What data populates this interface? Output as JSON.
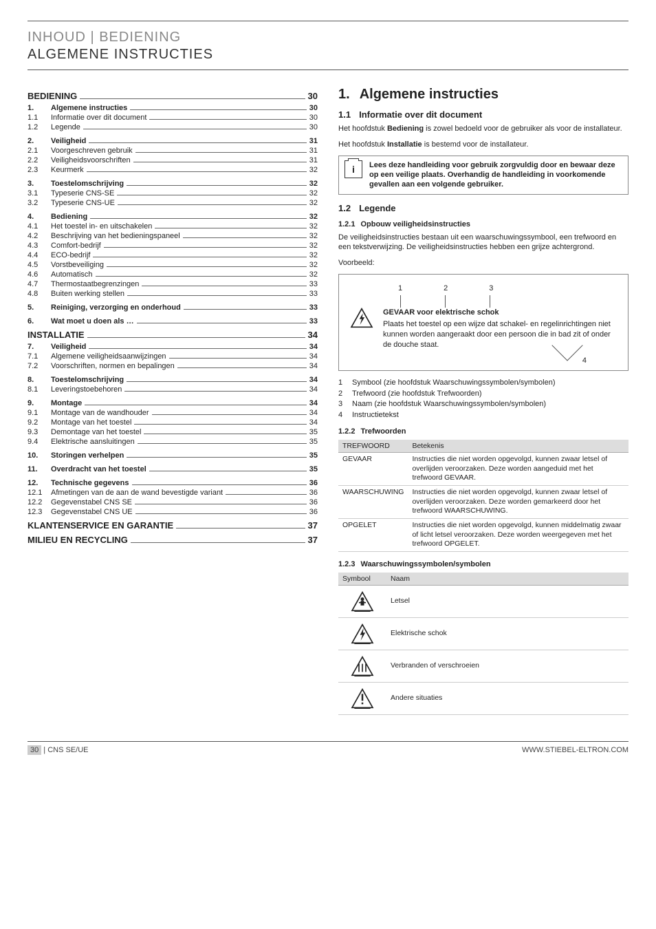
{
  "header": {
    "breadcrumb": "INHOUD | BEDIENING",
    "title": "ALGEMENE INSTRUCTIES"
  },
  "toc": {
    "sections": [
      {
        "type": "head",
        "num": "",
        "label": "BEDIENING",
        "page": "30"
      },
      {
        "type": "bold",
        "num": "1.",
        "label": "Algemene instructies",
        "page": "30"
      },
      {
        "num": "1.1",
        "label": "Informatie over dit document",
        "page": "30"
      },
      {
        "num": "1.2",
        "label": "Legende",
        "page": "30"
      },
      {
        "type": "bold",
        "num": "2.",
        "label": "Veiligheid",
        "page": "31",
        "gap": true
      },
      {
        "num": "2.1",
        "label": "Voorgeschreven gebruik",
        "page": "31"
      },
      {
        "num": "2.2",
        "label": "Veiligheidsvoorschriften",
        "page": "31"
      },
      {
        "num": "2.3",
        "label": "Keurmerk",
        "page": "32"
      },
      {
        "type": "bold",
        "num": "3.",
        "label": "Toestelomschrijving",
        "page": "32",
        "gap": true
      },
      {
        "num": "3.1",
        "label": "Typeserie CNS-SE",
        "page": "32"
      },
      {
        "num": "3.2",
        "label": "Typeserie CNS-UE",
        "page": "32"
      },
      {
        "type": "bold",
        "num": "4.",
        "label": "Bediening",
        "page": "32",
        "gap": true
      },
      {
        "num": "4.1",
        "label": "Het toestel in- en uitschakelen",
        "page": "32"
      },
      {
        "num": "4.2",
        "label": "Beschrijving van het bedieningspaneel",
        "page": "32"
      },
      {
        "num": "4.3",
        "label": "Comfort-bedrijf",
        "page": "32"
      },
      {
        "num": "4.4",
        "label": "ECO-bedrijf",
        "page": "32"
      },
      {
        "num": "4.5",
        "label": "Vorstbeveiliging",
        "page": "32"
      },
      {
        "num": "4.6",
        "label": "Automatisch",
        "page": "32"
      },
      {
        "num": "4.7",
        "label": "Thermostaatbegrenzingen",
        "page": "33"
      },
      {
        "num": "4.8",
        "label": "Buiten werking stellen",
        "page": "33"
      },
      {
        "type": "bold",
        "num": "5.",
        "label": "Reiniging, verzorging en onderhoud",
        "page": "33",
        "gap": true
      },
      {
        "type": "bold",
        "num": "6.",
        "label": "Wat moet u doen als …",
        "page": "33",
        "gap": true
      },
      {
        "type": "head",
        "num": "",
        "label": "INSTALLATIE",
        "page": "34"
      },
      {
        "type": "bold",
        "num": "7.",
        "label": "Veiligheid",
        "page": "34"
      },
      {
        "num": "7.1",
        "label": "Algemene veiligheidsaanwijzingen",
        "page": "34"
      },
      {
        "num": "7.2",
        "label": "Voorschriften, normen en bepalingen",
        "page": "34"
      },
      {
        "type": "bold",
        "num": "8.",
        "label": "Toestelomschrijving",
        "page": "34",
        "gap": true
      },
      {
        "num": "8.1",
        "label": "Leveringstoebehoren",
        "page": "34"
      },
      {
        "type": "bold",
        "num": "9.",
        "label": "Montage",
        "page": "34",
        "gap": true
      },
      {
        "num": "9.1",
        "label": "Montage van de wandhouder",
        "page": "34"
      },
      {
        "num": "9.2",
        "label": "Montage van het toestel",
        "page": "34"
      },
      {
        "num": "9.3",
        "label": "Demontage van het toestel",
        "page": "35"
      },
      {
        "num": "9.4",
        "label": "Elektrische aansluitingen",
        "page": "35"
      },
      {
        "type": "bold",
        "num": "10.",
        "label": "Storingen verhelpen",
        "page": "35",
        "gap": true
      },
      {
        "type": "bold",
        "num": "11.",
        "label": "Overdracht van het toestel",
        "page": "35",
        "gap": true
      },
      {
        "type": "bold",
        "num": "12.",
        "label": "Technische gegevens",
        "page": "36",
        "gap": true
      },
      {
        "num": "12.1",
        "label": "Afmetingen van de aan de wand bevestigde variant",
        "page": "36"
      },
      {
        "num": "12.2",
        "label": "Gegevenstabel CNS SE",
        "page": "36"
      },
      {
        "num": "12.3",
        "label": "Gegevenstabel CNS UE",
        "page": "36"
      },
      {
        "type": "head",
        "num": "",
        "label": "KLANTENSERVICE EN GARANTIE",
        "page": "37"
      },
      {
        "type": "head",
        "num": "",
        "label": "MILIEU EN RECYCLING",
        "page": "37"
      }
    ]
  },
  "right": {
    "h1_num": "1.",
    "h1": "Algemene instructies",
    "h11_num": "1.1",
    "h11": "Informatie over dit document",
    "p1a": "Het hoofdstuk ",
    "p1b": "Bediening",
    "p1c": " is zowel bedoeld voor de gebruiker als voor de installateur.",
    "p2a": "Het hoofdstuk ",
    "p2b": "Installatie",
    "p2c": " is bestemd voor de installateur.",
    "info": "Lees deze handleiding voor gebruik zorgvuldig door en bewaar deze op een veilige plaats. Overhandig de handleiding in voorkomende gevallen aan een volgende gebruiker.",
    "h12_num": "1.2",
    "h12": "Legende",
    "h121_num": "1.2.1",
    "h121": "Opbouw veiligheidsinstructies",
    "p3": "De veiligheidsinstructies bestaan uit een waarschuwingssymbool, een trefwoord en een tekstverwijzing. De veiligheidsinstructies hebben een grijze achtergrond.",
    "voorbeeld": "Voorbeeld:",
    "callouts": [
      "1",
      "2",
      "3"
    ],
    "danger_title": "GEVAAR voor elektrische schok",
    "danger_body": "Plaats het toestel op een wijze dat schakel- en regelinrichtingen niet kunnen worden aangeraakt door een persoon die in bad zit of onder de douche staat.",
    "cb4": "4",
    "legend_items": [
      {
        "n": "1",
        "t": "Symbool (zie hoofdstuk Waarschuwingssymbolen/symbolen)"
      },
      {
        "n": "2",
        "t": "Trefwoord (zie hoofdstuk Trefwoorden)"
      },
      {
        "n": "3",
        "t": "Naam (zie hoofdstuk Waarschuwingssymbolen/symbolen)"
      },
      {
        "n": "4",
        "t": "Instructietekst"
      }
    ],
    "h122_num": "1.2.2",
    "h122": "Trefwoorden",
    "table1": {
      "head": [
        "TREFWOORD",
        "Betekenis"
      ],
      "rows": [
        [
          "GEVAAR",
          "Instructies die niet worden opgevolgd, kunnen zwaar letsel of overlijden veroorzaken. Deze worden aangeduid met het trefwoord GEVAAR."
        ],
        [
          "WAARSCHUWING",
          "Instructies die niet worden opgevolgd, kunnen zwaar letsel of overlijden veroorzaken. Deze worden gemarkeerd door het trefwoord WAARSCHUWING."
        ],
        [
          "OPGELET",
          "Instructies die niet worden opgevolgd, kunnen middelmatig zwaar of licht letsel veroorzaken. Deze worden weergegeven met het trefwoord OPGELET."
        ]
      ]
    },
    "h123_num": "1.2.3",
    "h123": "Waarschuwingssymbolen/symbolen",
    "table2": {
      "head": [
        "Symbool",
        "Naam"
      ],
      "rows": [
        {
          "icon": "injury",
          "label": "Letsel"
        },
        {
          "icon": "shock",
          "label": "Elektrische schok"
        },
        {
          "icon": "burn",
          "label": "Verbranden of verschroeien"
        },
        {
          "icon": "other",
          "label": "Andere situaties"
        }
      ]
    }
  },
  "footer": {
    "left_page": "30",
    "left_text": " | CNS SE/UE",
    "right": "WWW.STIEBEL-ELTRON.COM"
  }
}
